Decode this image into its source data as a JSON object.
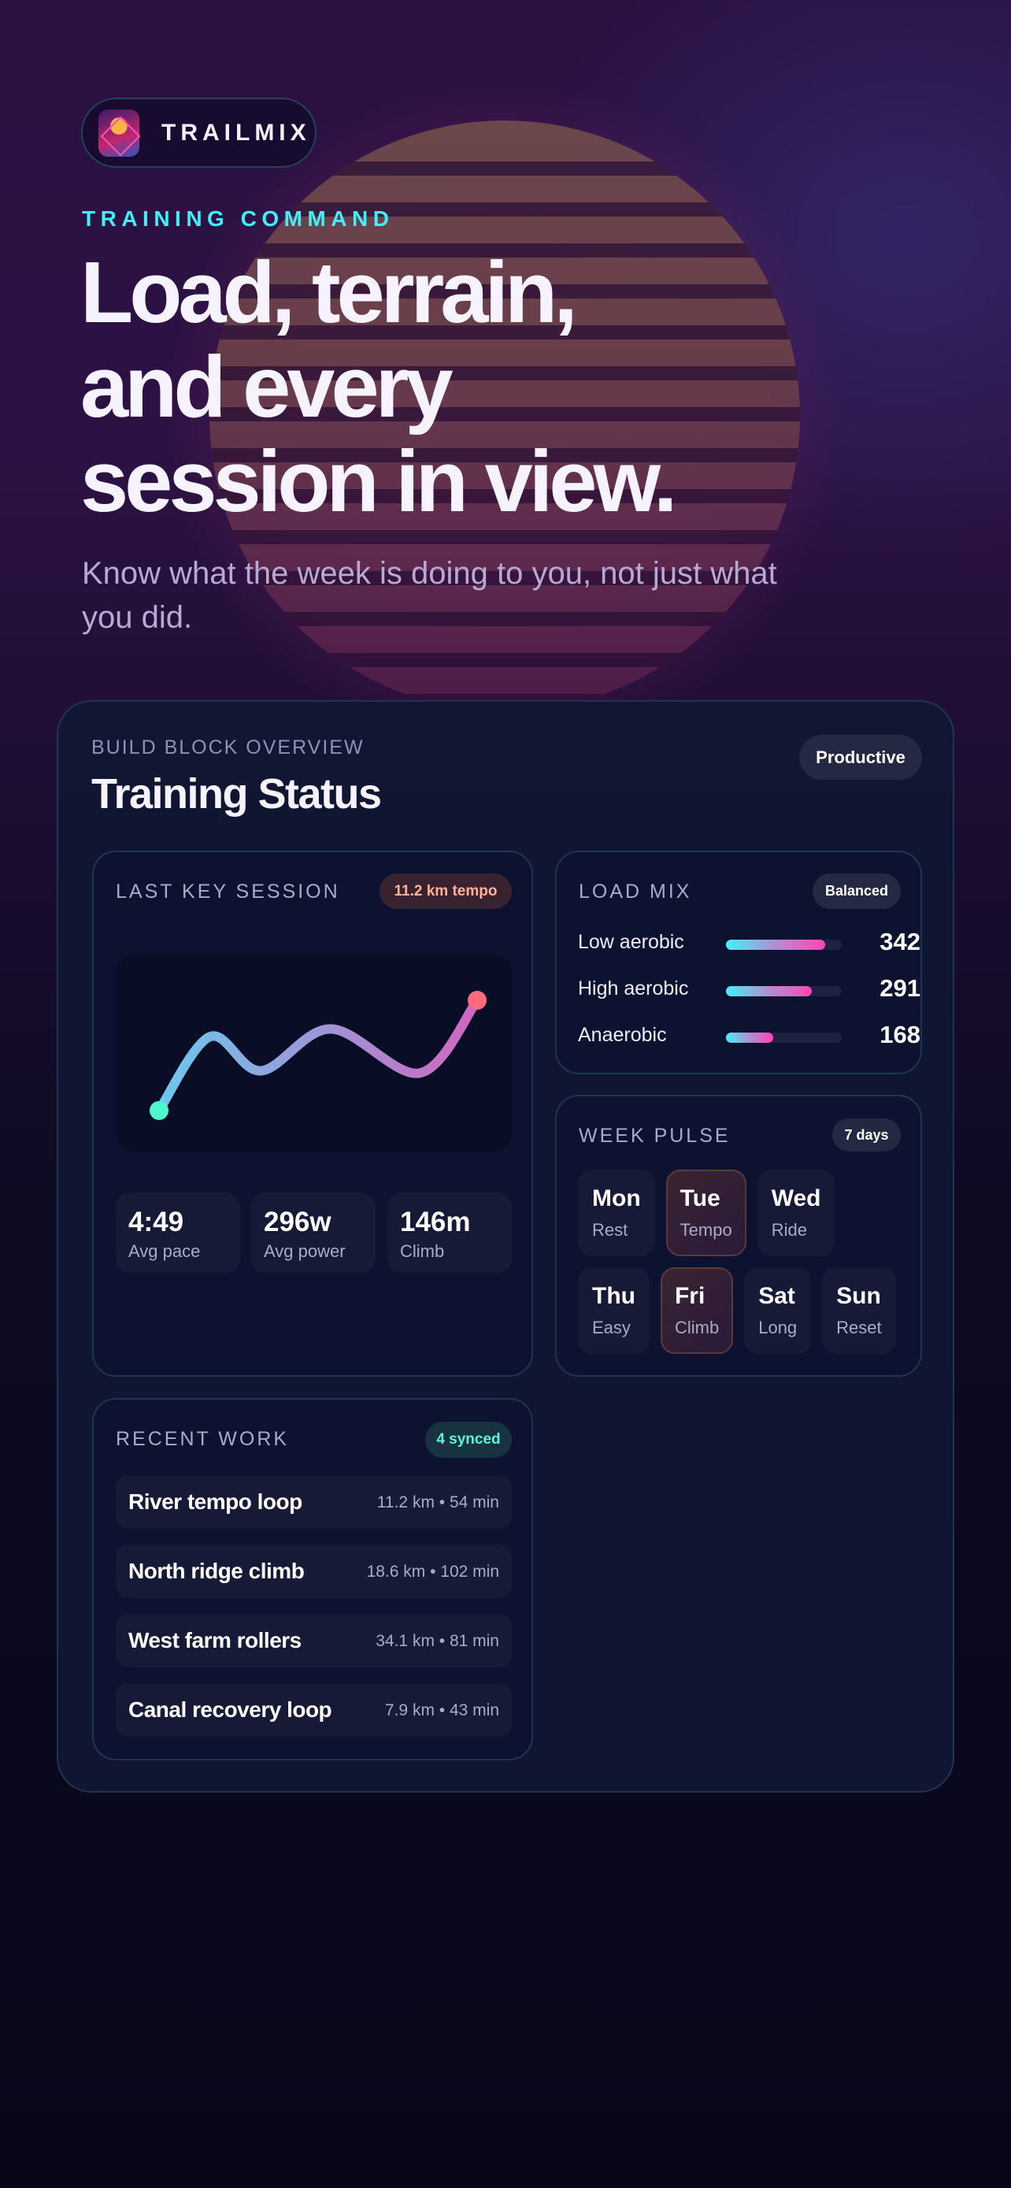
{
  "brand": {
    "name": "TRAILMIX",
    "logo_text": "TRAILMIX"
  },
  "hero": {
    "eyebrow": "TRAINING COMMAND",
    "headline_lines": [
      "Load, terrain,",
      "and every",
      "session in view."
    ],
    "subtitle": "Know what the week is doing to you, not just what you did."
  },
  "card": {
    "eyebrow": "BUILD BLOCK OVERVIEW",
    "title": "Training Status",
    "status_badge": "Productive"
  },
  "last_session": {
    "label": "LAST KEY SESSION",
    "badge": "11.2 km tempo",
    "stats": [
      {
        "value": "4:49",
        "label": "Avg pace"
      },
      {
        "value": "296w",
        "label": "Avg power"
      },
      {
        "value": "146m",
        "label": "Climb"
      }
    ]
  },
  "chart_data": {
    "type": "line",
    "title": "",
    "xlabel": "",
    "ylabel": "",
    "grid": false,
    "series": [
      {
        "values": [
          0,
          67,
          36,
          74,
          34,
          100
        ]
      }
    ],
    "colors": {
      "start": "#4ff5d0",
      "end": "#ff6b7e",
      "line_from": "#6cc8ee",
      "line_to": "#d066c0"
    }
  },
  "load_mix": {
    "label": "LOAD MIX",
    "badge": "Balanced",
    "rows": [
      {
        "name": "Low aerobic",
        "value": "342",
        "fill": 0.86
      },
      {
        "name": "High aerobic",
        "value": "291",
        "fill": 0.74
      },
      {
        "name": "Anaerobic",
        "value": "168",
        "fill": 0.41
      }
    ]
  },
  "week_pulse": {
    "label": "WEEK PULSE",
    "badge": "7 days",
    "days": [
      {
        "day": "Mon",
        "type": "Rest",
        "highlight": false
      },
      {
        "day": "Tue",
        "type": "Tempo",
        "highlight": true
      },
      {
        "day": "Wed",
        "type": "Ride",
        "highlight": false
      },
      {
        "day": "Thu",
        "type": "Easy",
        "highlight": false
      },
      {
        "day": "Fri",
        "type": "Climb",
        "highlight": true
      },
      {
        "day": "Sat",
        "type": "Long",
        "highlight": false
      },
      {
        "day": "Sun",
        "type": "Reset",
        "highlight": false
      }
    ]
  },
  "recent_work": {
    "label": "RECENT WORK",
    "badge": "4 synced",
    "items": [
      {
        "name": "River tempo loop",
        "meta": "11.2 km • 54 min"
      },
      {
        "name": "North ridge climb",
        "meta": "18.6 km • 102 min"
      },
      {
        "name": "West farm rollers",
        "meta": "34.1 km • 81 min"
      },
      {
        "name": "Canal recovery loop",
        "meta": "7.9 km • 43 min"
      }
    ]
  }
}
